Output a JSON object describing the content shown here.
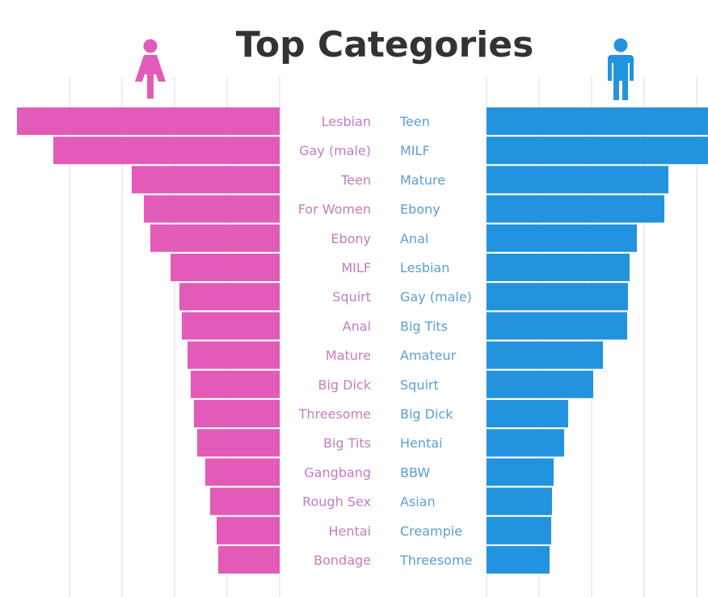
{
  "chart_data": {
    "type": "bar",
    "title": "Top Categories",
    "series": [
      {
        "name": "",
        "color": "#e35bb8",
        "icon": "female-icon",
        "categories": [
          "Lesbian",
          "Gay (male)",
          "Teen",
          "For Women",
          "Ebony",
          "MILF",
          "Squirt",
          "Anal",
          "Mature",
          "Big Dick",
          "Threesome",
          "Big Tits",
          "Gangbang",
          "Rough Sex",
          "Hentai",
          "Bondage"
        ],
        "values": [
          325,
          280,
          183,
          168,
          160,
          135,
          124,
          121,
          114,
          110,
          106,
          102,
          92,
          86,
          78,
          76
        ]
      },
      {
        "name": "",
        "color": "#2393e0",
        "icon": "male-icon",
        "categories": [
          "Teen",
          "MILF",
          "Mature",
          "Ebony",
          "Anal",
          "Lesbian",
          "Gay (male)",
          "Big Tits",
          "Amateur",
          "Squirt",
          "Big Dick",
          "Hentai",
          "BBW",
          "Asian",
          "Creampie",
          "Threesome"
        ],
        "values": [
          275,
          275,
          225,
          220,
          186,
          177,
          175,
          174,
          144,
          132,
          101,
          96,
          83,
          81,
          80,
          78
        ]
      }
    ],
    "grid": true,
    "legend": "icons above each side"
  }
}
